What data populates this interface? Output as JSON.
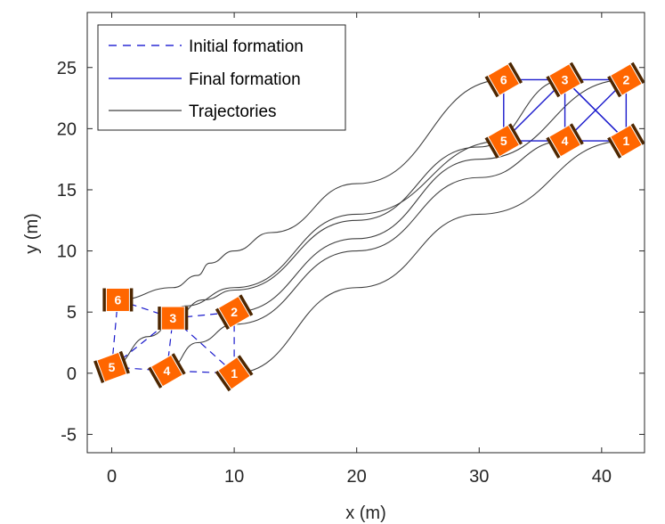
{
  "chart_data": {
    "type": "line",
    "title": "",
    "xlabel": "x (m)",
    "ylabel": "y (m)",
    "xlim": [
      -2,
      43.5
    ],
    "ylim": [
      -6.5,
      29.5
    ],
    "xticks": [
      0,
      10,
      20,
      30,
      40
    ],
    "xtick_labels": [
      "0",
      "10",
      "20",
      "30",
      "40"
    ],
    "yticks": [
      -5,
      0,
      5,
      10,
      15,
      20,
      25
    ],
    "ytick_labels": [
      "-5",
      "0",
      "5",
      "10",
      "15",
      "20",
      "25"
    ],
    "legend": {
      "position": "top-left",
      "entries": [
        {
          "label": "Initial formation",
          "style": "dashed",
          "color": "#0000cc"
        },
        {
          "label": "Final formation",
          "style": "solid",
          "color": "#0000cc"
        },
        {
          "label": "Trajectories",
          "style": "solid",
          "color": "#404040"
        }
      ]
    },
    "colors": {
      "robot_body": "#ff6600",
      "robot_wheels": "#4d2600",
      "formation": "#1a1acc",
      "trajectory": "#404040",
      "axis": "#262626"
    },
    "robots": [
      {
        "id": "1",
        "initial": {
          "x": 10,
          "y": 0,
          "heading": 35
        },
        "final": {
          "x": 42,
          "y": 19,
          "heading": 30
        }
      },
      {
        "id": "2",
        "initial": {
          "x": 10,
          "y": 5,
          "heading": 30
        },
        "final": {
          "x": 42,
          "y": 24,
          "heading": 30
        }
      },
      {
        "id": "3",
        "initial": {
          "x": 5,
          "y": 4.5,
          "heading": 0
        },
        "final": {
          "x": 37,
          "y": 24,
          "heading": 30
        }
      },
      {
        "id": "4",
        "initial": {
          "x": 4.5,
          "y": 0.2,
          "heading": 30
        },
        "final": {
          "x": 37,
          "y": 19,
          "heading": 30
        }
      },
      {
        "id": "5",
        "initial": {
          "x": 0,
          "y": 0.5,
          "heading": 20
        },
        "final": {
          "x": 32,
          "y": 19,
          "heading": 30
        }
      },
      {
        "id": "6",
        "initial": {
          "x": 0.5,
          "y": 6,
          "heading": 0
        },
        "final": {
          "x": 32,
          "y": 24,
          "heading": 30
        }
      }
    ],
    "initial_formation_edges": [
      [
        "6",
        "3"
      ],
      [
        "3",
        "2"
      ],
      [
        "2",
        "1"
      ],
      [
        "1",
        "4"
      ],
      [
        "4",
        "5"
      ],
      [
        "5",
        "6"
      ],
      [
        "5",
        "3"
      ],
      [
        "3",
        "1"
      ],
      [
        "4",
        "3"
      ]
    ],
    "final_formation_edges": [
      [
        "6",
        "3"
      ],
      [
        "3",
        "2"
      ],
      [
        "2",
        "1"
      ],
      [
        "1",
        "4"
      ],
      [
        "4",
        "5"
      ],
      [
        "5",
        "6"
      ],
      [
        "5",
        "3"
      ],
      [
        "3",
        "1"
      ],
      [
        "4",
        "3"
      ],
      [
        "3",
        "1"
      ],
      [
        "2",
        "4"
      ]
    ],
    "trajectories": [
      {
        "robot": "1",
        "points": [
          [
            10,
            0
          ],
          [
            20,
            7
          ],
          [
            30,
            13
          ],
          [
            42,
            19
          ]
        ]
      },
      {
        "robot": "2",
        "points": [
          [
            10,
            5
          ],
          [
            20,
            11
          ],
          [
            30,
            17.5
          ],
          [
            42,
            24
          ]
        ]
      },
      {
        "robot": "3",
        "points": [
          [
            5,
            4.5
          ],
          [
            7.5,
            6
          ],
          [
            10,
            6.8
          ],
          [
            20,
            12.5
          ],
          [
            30,
            18.5
          ],
          [
            37,
            24
          ]
        ]
      },
      {
        "robot": "4",
        "points": [
          [
            4.5,
            0.2
          ],
          [
            7,
            2.5
          ],
          [
            10,
            4
          ],
          [
            20,
            10
          ],
          [
            30,
            16
          ],
          [
            37,
            19
          ]
        ]
      },
      {
        "robot": "5",
        "points": [
          [
            0,
            0.5
          ],
          [
            3,
            3
          ],
          [
            6,
            5.5
          ],
          [
            10,
            7
          ],
          [
            20,
            13
          ],
          [
            32,
            19
          ]
        ]
      },
      {
        "robot": "6",
        "points": [
          [
            0.5,
            6
          ],
          [
            5,
            7
          ],
          [
            7,
            8
          ],
          [
            8,
            9
          ],
          [
            10,
            10
          ],
          [
            13,
            11.5
          ],
          [
            20,
            15.5
          ],
          [
            32,
            24
          ]
        ]
      }
    ]
  }
}
